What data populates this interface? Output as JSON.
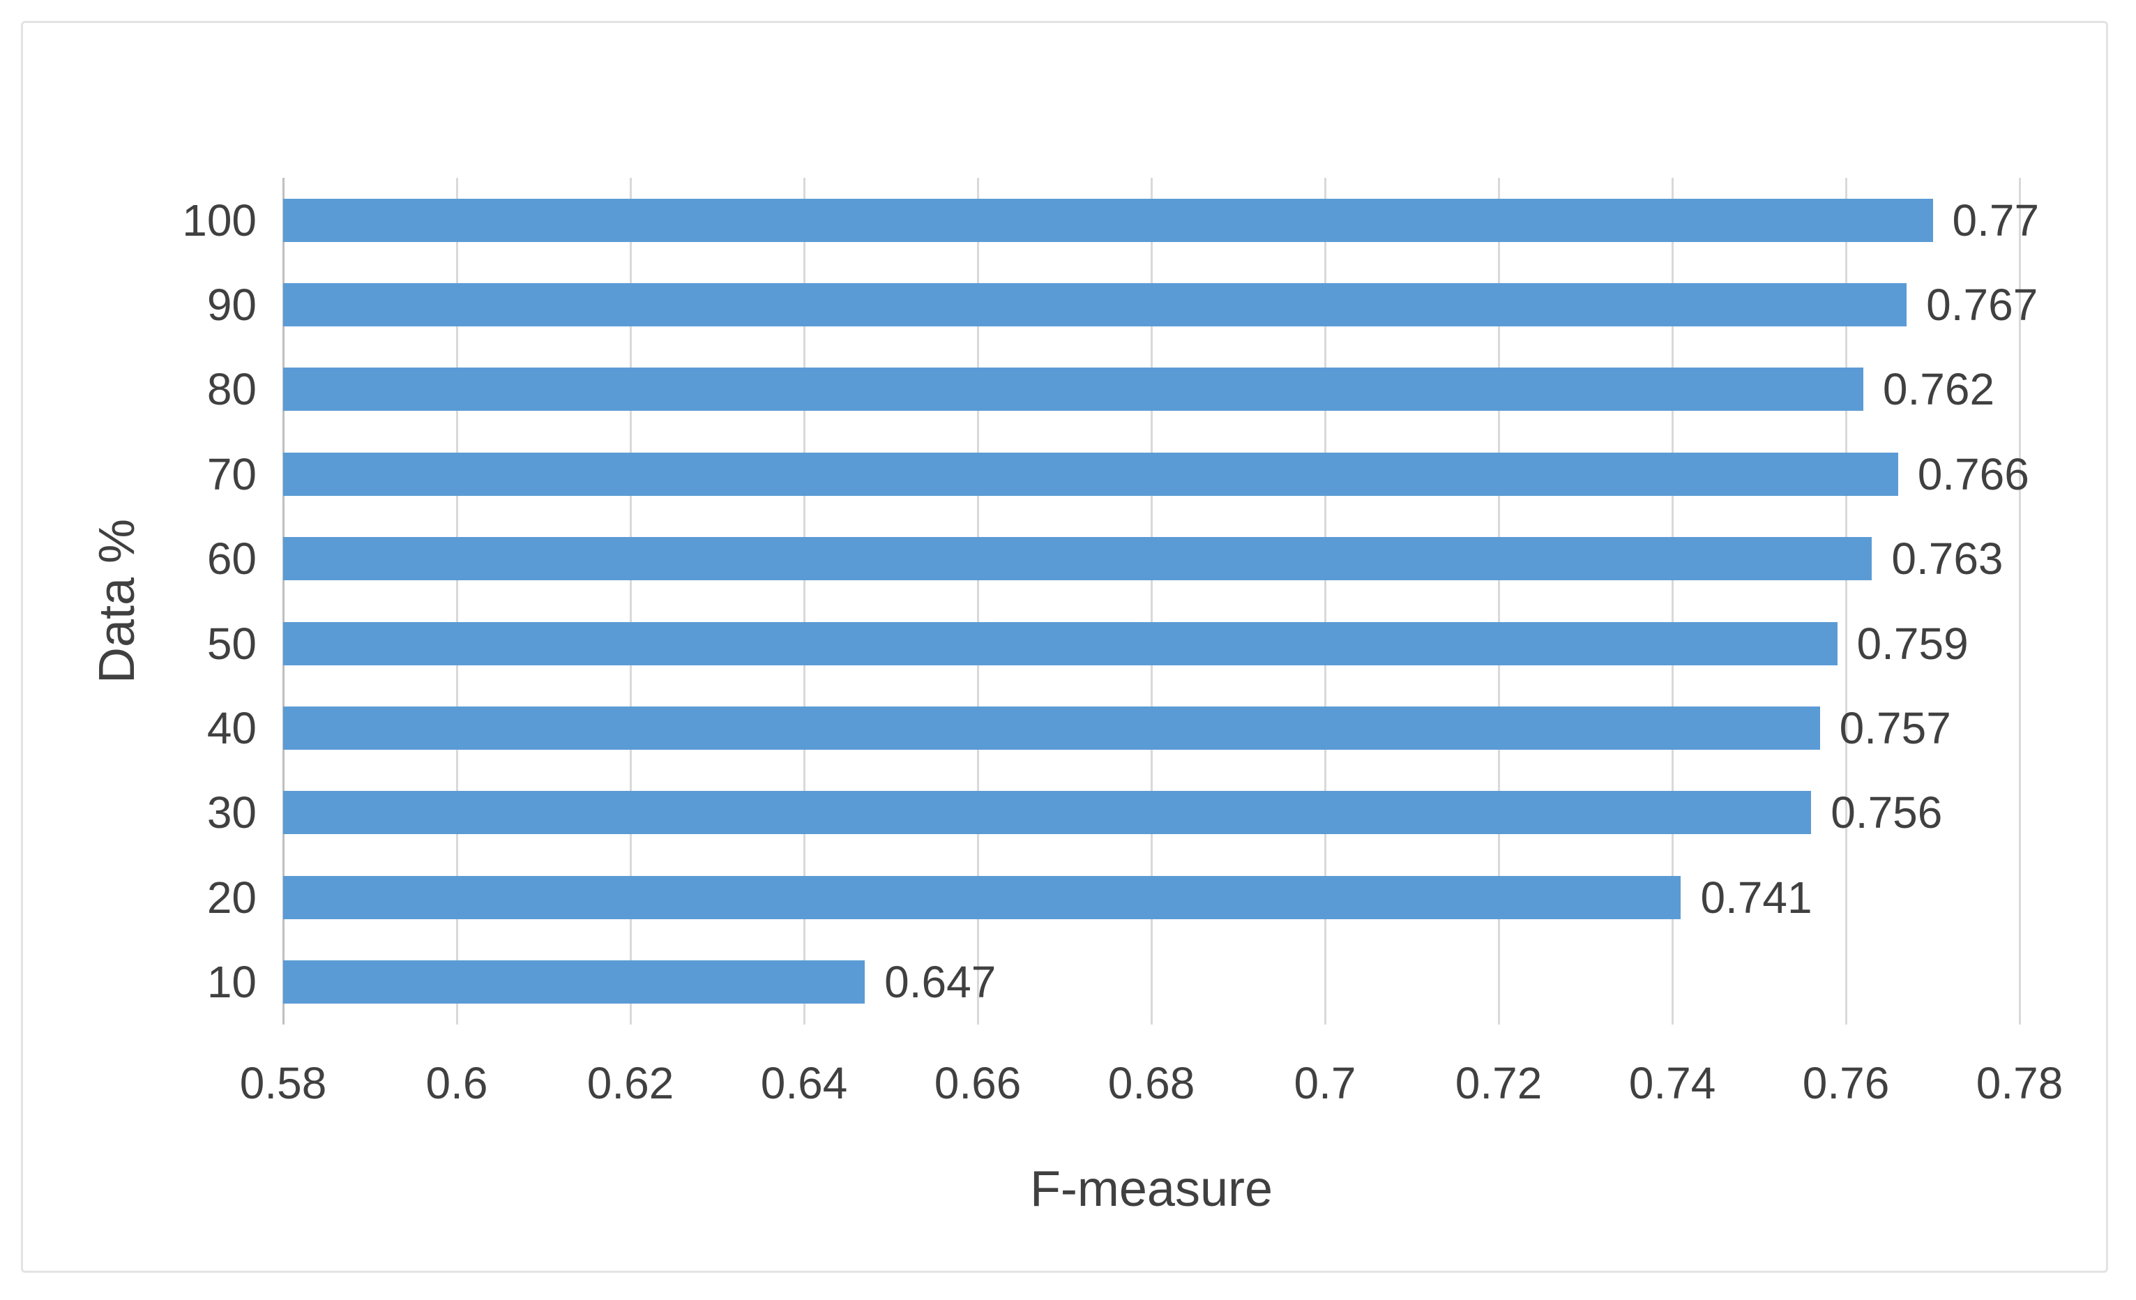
{
  "chart_data": {
    "type": "bar",
    "orientation": "horizontal",
    "title": "",
    "xlabel": "F-measure",
    "ylabel": "Data %",
    "categories": [
      "100",
      "90",
      "80",
      "70",
      "60",
      "50",
      "40",
      "30",
      "20",
      "10"
    ],
    "values": [
      0.77,
      0.767,
      0.762,
      0.766,
      0.763,
      0.759,
      0.757,
      0.756,
      0.741,
      0.647
    ],
    "data_labels": [
      "0.77",
      "0.767",
      "0.762",
      "0.766",
      "0.763",
      "0.759",
      "0.757",
      "0.756",
      "0.741",
      "0.647"
    ],
    "xlim": [
      0.58,
      0.78
    ],
    "xticks": [
      0.58,
      0.6,
      0.62,
      0.64,
      0.66,
      0.68,
      0.7,
      0.72,
      0.74,
      0.76,
      0.78
    ],
    "xtick_labels": [
      "0.58",
      "0.6",
      "0.62",
      "0.64",
      "0.66",
      "0.68",
      "0.7",
      "0.72",
      "0.74",
      "0.76",
      "0.78"
    ],
    "grid": "vertical-gridlines-on",
    "legend": "none",
    "colors": {
      "bar": "#5B9BD5",
      "gridline": "#D9D9D9",
      "axis_line": "#BFBFBF",
      "text": "#404040",
      "frame_border": "#E3E3E3",
      "background": "#FFFFFF"
    }
  }
}
